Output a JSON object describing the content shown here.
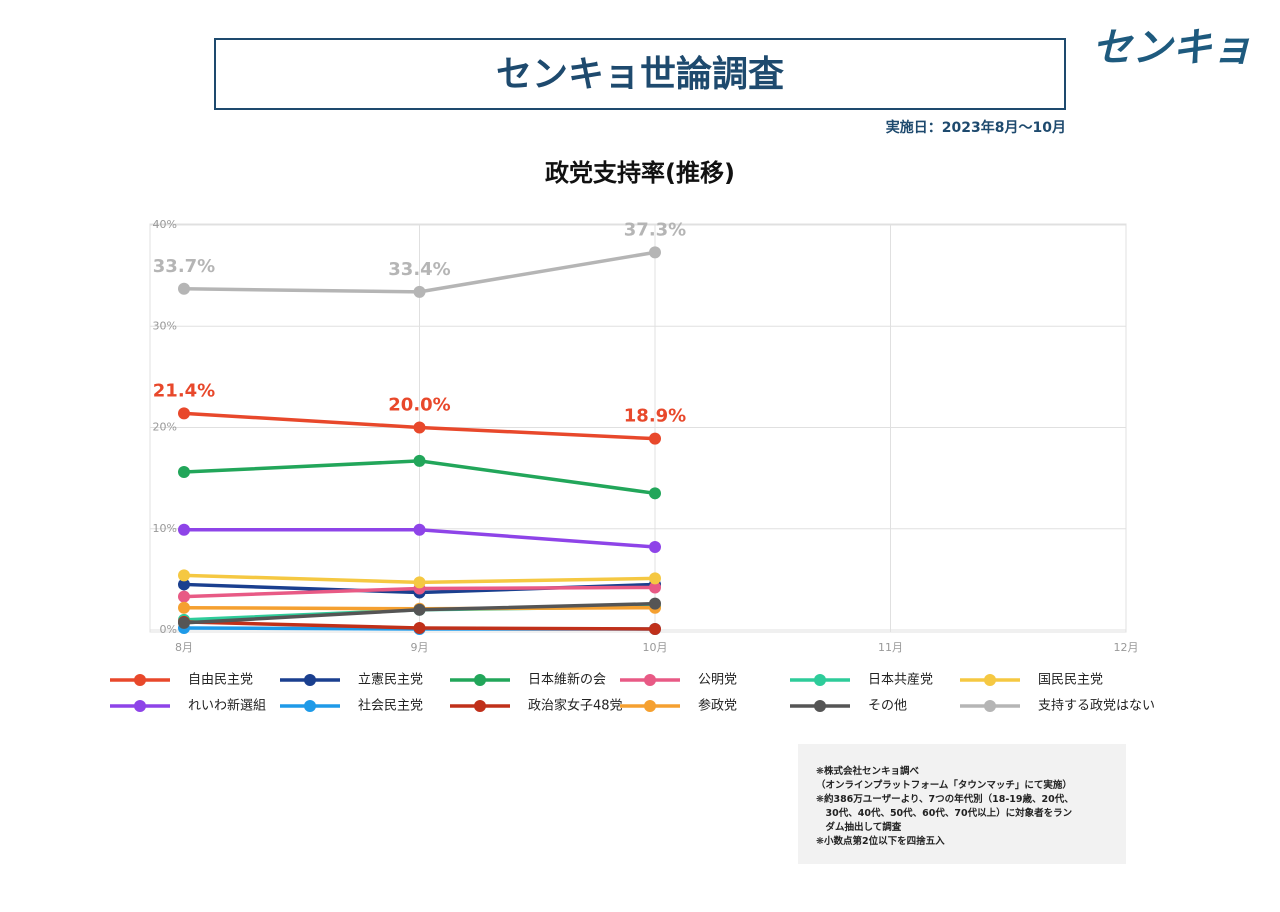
{
  "header": {
    "title": "センキョ世論調査",
    "logo": "センキョ",
    "date": "実施日：2023年8月〜10月"
  },
  "chart_data": {
    "type": "line",
    "title": "政党支持率(推移)",
    "categories": [
      "8月",
      "9月",
      "10月",
      "11月",
      "12月"
    ],
    "ylim": [
      0,
      40
    ],
    "yticks": [
      {
        "value": 0,
        "label": "0%"
      },
      {
        "value": 10,
        "label": "10%"
      },
      {
        "value": 20,
        "label": "20%"
      },
      {
        "value": 30,
        "label": "30%"
      },
      {
        "value": 40,
        "label": "40%"
      }
    ],
    "grid": true,
    "series": [
      {
        "name": "自由民主党",
        "color": "#e8482b",
        "values": [
          21.4,
          20.0,
          18.9,
          null,
          null
        ],
        "value_labels": [
          "21.4%",
          "20.0%",
          "18.9%",
          null,
          null
        ]
      },
      {
        "name": "立憲民主党",
        "color": "#1a3f8f",
        "values": [
          4.5,
          3.7,
          4.5,
          null,
          null
        ]
      },
      {
        "name": "日本維新の会",
        "color": "#22a65a",
        "values": [
          15.6,
          16.7,
          13.5,
          null,
          null
        ]
      },
      {
        "name": "公明党",
        "color": "#e85a85",
        "values": [
          3.3,
          4.1,
          4.2,
          null,
          null
        ]
      },
      {
        "name": "日本共産党",
        "color": "#2ecc9a",
        "values": [
          1.0,
          2.0,
          2.3,
          null,
          null
        ]
      },
      {
        "name": "国民民主党",
        "color": "#f5c842",
        "values": [
          5.4,
          4.7,
          5.1,
          null,
          null
        ]
      },
      {
        "name": "れいわ新選組",
        "color": "#8e44e8",
        "values": [
          9.9,
          9.9,
          8.2,
          null,
          null
        ]
      },
      {
        "name": "社会民主党",
        "color": "#1e9ae8",
        "values": [
          0.2,
          0.1,
          0.1,
          null,
          null
        ]
      },
      {
        "name": "政治家女子48党",
        "color": "#c0301a",
        "values": [
          0.8,
          0.2,
          0.1,
          null,
          null
        ]
      },
      {
        "name": "参政党",
        "color": "#f5a030",
        "values": [
          2.2,
          2.1,
          2.2,
          null,
          null
        ]
      },
      {
        "name": "その他",
        "color": "#555555",
        "values": [
          0.7,
          2.0,
          2.6,
          null,
          null
        ]
      },
      {
        "name": "支持する政党はない",
        "color": "#b5b5b5",
        "values": [
          33.7,
          33.4,
          37.3,
          null,
          null
        ],
        "value_labels": [
          "33.7%",
          "33.4%",
          "37.3%",
          null,
          null
        ]
      }
    ]
  },
  "notes": [
    "❋株式会社センキョ調べ",
    "（オンラインプラットフォーム「タウンマッチ」にて実施）",
    "❋約386万ユーザーより、7つの年代別（18-19歳、20代、",
    "　30代、40代、50代、60代、70代以上）に対象者をラン",
    "　ダム抽出して調査",
    "❋小数点第2位以下を四捨五入"
  ]
}
